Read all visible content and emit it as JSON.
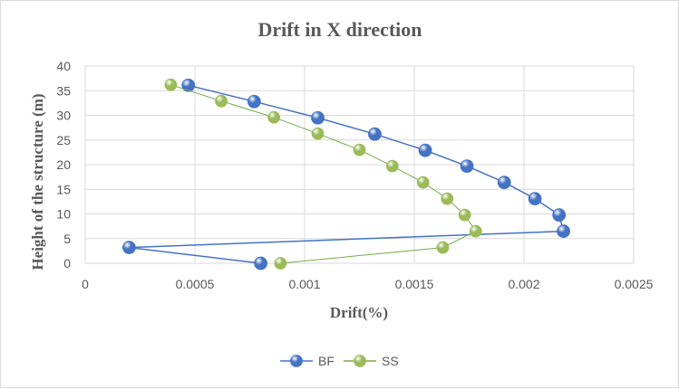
{
  "chart_data": {
    "type": "scatter",
    "title": "Drift in X direction",
    "xlabel": "Drift(%)",
    "ylabel": "Height of the structure  (m)",
    "xlim": [
      0,
      0.0025
    ],
    "ylim": [
      0,
      40
    ],
    "x_ticks": [
      "0",
      "0.0005",
      "0.001",
      "0.0015",
      "0.002",
      "0.0025"
    ],
    "y_ticks": [
      "0",
      "5",
      "10",
      "15",
      "20",
      "25",
      "30",
      "35",
      "40"
    ],
    "grid": true,
    "legend_position": "bottom",
    "series": [
      {
        "name": "BF",
        "color": "#4472c4",
        "line_color": "#4472c4",
        "points": [
          [
            0.0008,
            0
          ],
          [
            0.0002,
            3.2
          ],
          [
            0.00218,
            6.5
          ],
          [
            0.00216,
            9.8
          ],
          [
            0.00205,
            13.1
          ],
          [
            0.00191,
            16.4
          ],
          [
            0.00174,
            19.7
          ],
          [
            0.00155,
            22.9
          ],
          [
            0.00132,
            26.2
          ],
          [
            0.00106,
            29.5
          ],
          [
            0.00077,
            32.8
          ],
          [
            0.00047,
            36.1
          ]
        ]
      },
      {
        "name": "SS",
        "color": "#9bbb59",
        "line_color": "#70ad47",
        "points": [
          [
            0.00089,
            0
          ],
          [
            0.00163,
            3.2
          ],
          [
            0.00178,
            6.5
          ],
          [
            0.00173,
            9.8
          ],
          [
            0.00165,
            13.1
          ],
          [
            0.00154,
            16.4
          ],
          [
            0.0014,
            19.7
          ],
          [
            0.00125,
            23.0
          ],
          [
            0.00106,
            26.3
          ],
          [
            0.00086,
            29.6
          ],
          [
            0.00062,
            32.9
          ],
          [
            0.00039,
            36.2
          ]
        ]
      }
    ]
  }
}
